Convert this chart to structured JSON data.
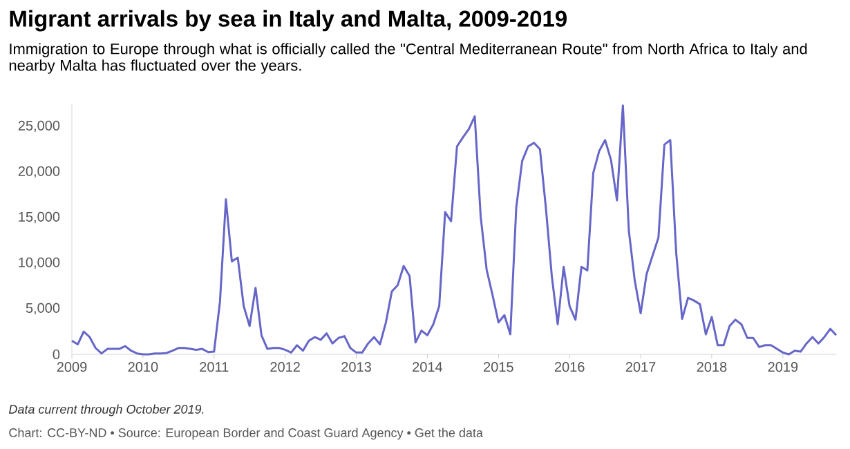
{
  "chart_data": {
    "type": "line",
    "title": "Migrant arrivals by sea in Italy and Malta, 2009-2019",
    "subtitle": "Immigration to Europe through what is officially called the \"Central Mediterranean Route\" from North Africa to Italy and nearby Malta has fluctuated over the years.",
    "annotations": [
      "Data current through October 2019.",
      "Chart: CC-BY-ND • Source: European Border and Coast Guard Agency • Get the data"
    ],
    "x": [
      "2009-01",
      "2009-02",
      "2009-03",
      "2009-04",
      "2009-05",
      "2009-06",
      "2009-07",
      "2009-08",
      "2009-09",
      "2009-10",
      "2009-11",
      "2009-12",
      "2010-01",
      "2010-02",
      "2010-03",
      "2010-04",
      "2010-05",
      "2010-06",
      "2010-07",
      "2010-08",
      "2010-09",
      "2010-10",
      "2010-11",
      "2010-12",
      "2011-01",
      "2011-02",
      "2011-03",
      "2011-04",
      "2011-05",
      "2011-06",
      "2011-07",
      "2011-08",
      "2011-09",
      "2011-10",
      "2011-11",
      "2011-12",
      "2012-01",
      "2012-02",
      "2012-03",
      "2012-04",
      "2012-05",
      "2012-06",
      "2012-07",
      "2012-08",
      "2012-09",
      "2012-10",
      "2012-11",
      "2012-12",
      "2013-01",
      "2013-02",
      "2013-03",
      "2013-04",
      "2013-05",
      "2013-06",
      "2013-07",
      "2013-08",
      "2013-09",
      "2013-10",
      "2013-11",
      "2013-12",
      "2014-01",
      "2014-02",
      "2014-03",
      "2014-04",
      "2014-05",
      "2014-06",
      "2014-07",
      "2014-08",
      "2014-09",
      "2014-10",
      "2014-11",
      "2014-12",
      "2015-01",
      "2015-02",
      "2015-03",
      "2015-04",
      "2015-05",
      "2015-06",
      "2015-07",
      "2015-08",
      "2015-09",
      "2015-10",
      "2015-11",
      "2015-12",
      "2016-01",
      "2016-02",
      "2016-03",
      "2016-04",
      "2016-05",
      "2016-06",
      "2016-07",
      "2016-08",
      "2016-09",
      "2016-10",
      "2016-11",
      "2016-12",
      "2017-01",
      "2017-02",
      "2017-03",
      "2017-04",
      "2017-05",
      "2017-06",
      "2017-07",
      "2017-08",
      "2017-09",
      "2017-10",
      "2017-11",
      "2017-12",
      "2018-01",
      "2018-02",
      "2018-03",
      "2018-04",
      "2018-05",
      "2018-06",
      "2018-07",
      "2018-08",
      "2018-09",
      "2018-10",
      "2018-11",
      "2018-12",
      "2019-01",
      "2019-02",
      "2019-03",
      "2019-04",
      "2019-05",
      "2019-06",
      "2019-07",
      "2019-08",
      "2019-09",
      "2019-10"
    ],
    "series": [
      {
        "color": "#6666c8",
        "values": [
          1500,
          1100,
          2500,
          1900,
          700,
          100,
          600,
          600,
          600,
          900,
          400,
          100,
          0,
          0,
          100,
          100,
          150,
          400,
          700,
          700,
          600,
          500,
          600,
          250,
          300,
          5800,
          17000,
          10200,
          10600,
          5300,
          3100,
          7300,
          2100,
          600,
          700,
          700,
          500,
          200,
          1000,
          400,
          1500,
          1900,
          1600,
          2300,
          1200,
          1800,
          2000,
          700,
          200,
          200,
          1200,
          1900,
          1100,
          3500,
          6900,
          7600,
          9700,
          8600,
          1300,
          2600,
          2100,
          3300,
          5300,
          15600,
          14600,
          22800,
          23800,
          24700,
          26100,
          15100,
          9300,
          6500,
          3500,
          4300,
          2200,
          16100,
          21200,
          22800,
          23200,
          22500,
          16100,
          8600,
          3300,
          9600,
          5300,
          3800,
          9600,
          9200,
          19900,
          22300,
          23500,
          21300,
          16900,
          27300,
          13600,
          8100,
          4500,
          8800,
          10800,
          12800,
          23000,
          23500,
          11100,
          3900,
          6200,
          5900,
          5500,
          2200,
          4100,
          1000,
          1000,
          3100,
          3800,
          3300,
          1800,
          1800,
          800,
          1000,
          1000,
          600,
          200,
          0,
          400,
          300,
          1200,
          1900,
          1200,
          1900,
          2800,
          2100
        ]
      }
    ],
    "xlim": [
      "2009-01",
      "2019-10"
    ],
    "ylim": [
      0,
      27500
    ],
    "xticks": [
      "2009",
      "2010",
      "2011",
      "2012",
      "2013",
      "2014",
      "2015",
      "2016",
      "2017",
      "2018",
      "2019"
    ],
    "yticks": [
      0,
      {
        "value": 5000,
        "label": "5,000"
      },
      {
        "value": 10000,
        "label": "10,000"
      },
      {
        "value": 15000,
        "label": "15,000"
      },
      {
        "value": 20000,
        "label": "20,000"
      },
      {
        "value": 25000,
        "label": "25,000"
      }
    ]
  }
}
